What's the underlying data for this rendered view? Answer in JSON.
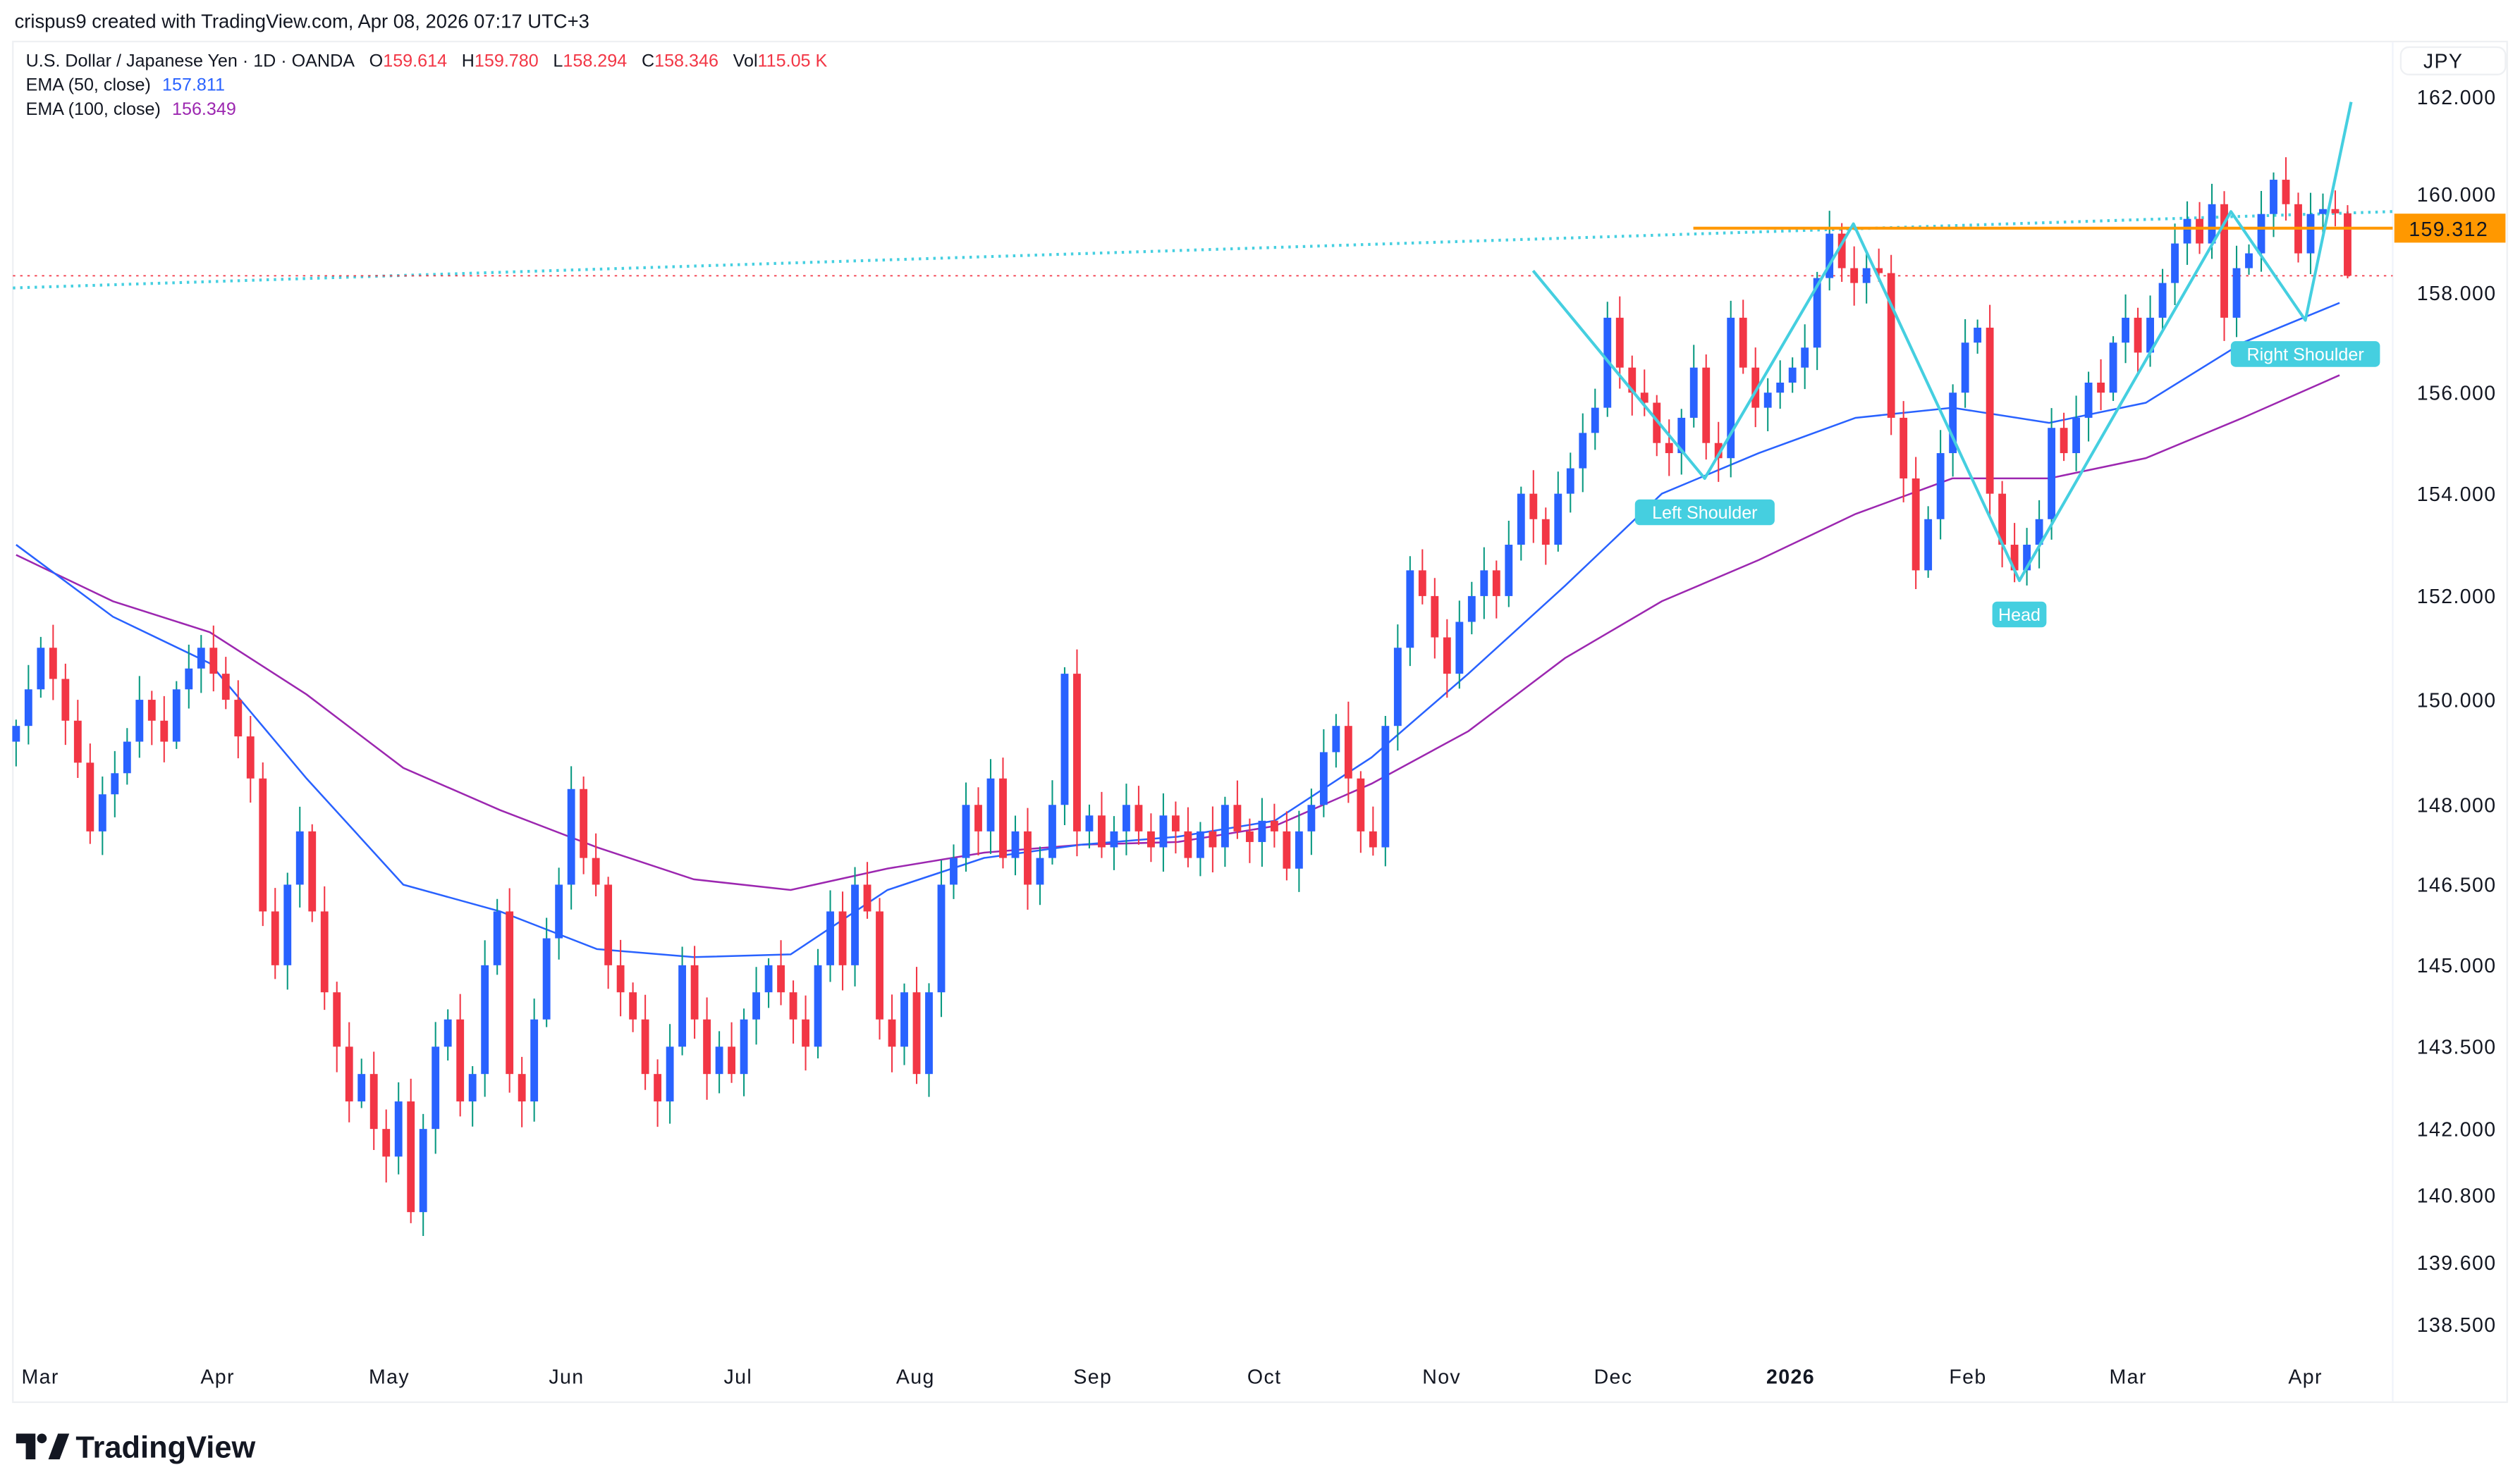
{
  "attribution": "crispus9 created with TradingView.com, Apr 08, 2026 07:17 UTC+3",
  "legend": {
    "symbol": "U.S. Dollar / Japanese Yen · 1D · OANDA",
    "ohlc": [
      {
        "k": "O",
        "v": "159.614"
      },
      {
        "k": "H",
        "v": "159.780"
      },
      {
        "k": "L",
        "v": "158.294"
      },
      {
        "k": "C",
        "v": "158.346"
      },
      {
        "k": "Vol",
        "v": "115.05 K"
      }
    ],
    "ema50_label": "EMA (50, close)",
    "ema50_value": "157.811",
    "ema100_label": "EMA (100, close)",
    "ema100_value": "156.349"
  },
  "colors": {
    "bull_body": "#2962ff",
    "bull_wick": "#089981",
    "bear": "#f23645",
    "ema50": "#2962ff",
    "ema100": "#9c27b0",
    "pattern": "#45cfe0",
    "resistance": "#ff9800"
  },
  "logo": "TradingView",
  "chart_data": {
    "type": "candlestick",
    "currency": "JPY",
    "y_scale": "log",
    "ylim": [
      138.0,
      162.6
    ],
    "y_ticks": [
      "162.000",
      "160.000",
      "158.000",
      "156.000",
      "154.000",
      "152.000",
      "150.000",
      "148.000",
      "146.500",
      "145.000",
      "143.500",
      "142.000",
      "140.800",
      "139.600",
      "138.500"
    ],
    "x_ticks": [
      {
        "label": "Mar",
        "date": "2025-03-01"
      },
      {
        "label": "Apr",
        "date": "2025-04-01"
      },
      {
        "label": "May",
        "date": "2025-05-01"
      },
      {
        "label": "Jun",
        "date": "2025-06-01"
      },
      {
        "label": "Jul",
        "date": "2025-07-01"
      },
      {
        "label": "Aug",
        "date": "2025-08-01"
      },
      {
        "label": "Sep",
        "date": "2025-09-01"
      },
      {
        "label": "Oct",
        "date": "2025-10-01"
      },
      {
        "label": "Nov",
        "date": "2025-11-01"
      },
      {
        "label": "Dec",
        "date": "2025-12-01"
      },
      {
        "label": "2026",
        "date": "2026-01-01",
        "bold": true
      },
      {
        "label": "Feb",
        "date": "2026-02-01"
      },
      {
        "label": "Mar",
        "date": "2026-03-01"
      },
      {
        "label": "Apr",
        "date": "2026-04-01"
      }
    ],
    "closes": [
      149.5,
      150.2,
      151,
      150.4,
      149.6,
      148.8,
      147.5,
      148.2,
      148.6,
      149.2,
      150,
      149.6,
      149.2,
      150.2,
      150.6,
      151,
      150.5,
      150,
      149.3,
      148.5,
      146,
      145,
      146.5,
      147.5,
      146,
      144.5,
      143.5,
      142.5,
      143,
      142,
      141.5,
      142.5,
      140.5,
      142,
      143.5,
      144,
      142.5,
      143,
      145,
      146,
      143,
      142.5,
      144,
      145.5,
      146.5,
      148.3,
      147,
      146.5,
      145,
      144.5,
      144,
      143,
      142.5,
      143.5,
      145,
      144,
      143,
      143.5,
      143,
      144,
      144.5,
      145,
      144.5,
      144,
      143.5,
      145,
      146,
      145,
      146.5,
      146,
      144,
      143.5,
      144.5,
      143,
      144.5,
      146.5,
      147,
      148,
      147.5,
      148.5,
      147,
      147.5,
      146.5,
      147,
      148,
      150.5,
      147.5,
      147.8,
      147.2,
      147.5,
      148,
      147.5,
      147.2,
      147.8,
      147.5,
      147,
      147.5,
      147.2,
      148,
      147.5,
      147.3,
      147.7,
      147.5,
      146.8,
      147.5,
      148,
      149,
      149.5,
      148.5,
      147.5,
      147.2,
      149.5,
      151,
      152.5,
      152,
      151.2,
      150.5,
      151.5,
      152,
      152.5,
      152,
      153,
      154,
      153.5,
      153,
      154,
      154.5,
      155.2,
      155.7,
      157.5,
      156.5,
      156,
      155.8,
      155,
      154.8,
      155.5,
      156.5,
      155,
      154.7,
      157.5,
      156.5,
      155.7,
      156,
      156.2,
      156.5,
      156.9,
      158.3,
      159.2,
      158.5,
      158.2,
      158.5,
      158.4,
      155.5,
      154.3,
      152.5,
      153.5,
      154.8,
      156,
      157,
      157.3,
      154,
      153,
      152.5,
      153,
      153.5,
      155.3,
      154.8,
      155.5,
      156.2,
      156,
      157,
      157.5,
      156.8,
      157.5,
      158.2,
      159,
      159.5,
      159,
      159.8,
      157.5,
      158.5,
      158.8,
      159.6,
      160.3,
      159.8,
      158.8,
      159.6,
      159.7,
      159.614,
      158.346
    ],
    "last_bar": {
      "open": 159.614,
      "high": 159.78,
      "low": 158.294,
      "close": 158.346
    },
    "ema50": [
      153,
      151.6,
      150.7,
      148.5,
      146.5,
      146.0,
      145.3,
      145.15,
      145.2,
      146.4,
      147.0,
      147.25,
      147.4,
      147.7,
      148.9,
      150.5,
      152.2,
      154.0,
      154.8,
      155.5,
      155.7,
      155.4,
      155.8,
      157.0,
      157.8
    ],
    "ema100": [
      152.8,
      151.9,
      151.3,
      150.1,
      148.7,
      147.9,
      147.2,
      146.6,
      146.4,
      146.8,
      147.1,
      147.25,
      147.3,
      147.6,
      148.4,
      149.4,
      150.8,
      151.9,
      152.7,
      153.6,
      154.3,
      154.3,
      154.7,
      155.5,
      156.35
    ],
    "resistance": {
      "price": 159.312,
      "label": "159.312",
      "from_date": "2025-12-15"
    },
    "last_price_line": 158.346,
    "trendline": {
      "start_price": 158.1,
      "end_price": 159.65
    },
    "pattern": [
      {
        "date": "2025-11-17",
        "price": 158.45
      },
      {
        "date": "2025-12-17",
        "price": 154.3,
        "label": "Left Shoulder"
      },
      {
        "date": "2026-01-12",
        "price": 159.4
      },
      {
        "date": "2026-02-10",
        "price": 152.3,
        "label": "Head"
      },
      {
        "date": "2026-03-19",
        "price": 159.65
      },
      {
        "date": "2026-04-01",
        "price": 157.45,
        "label": "Right Shoulder"
      },
      {
        "date": "2026-04-09",
        "price": 161.9
      }
    ]
  }
}
